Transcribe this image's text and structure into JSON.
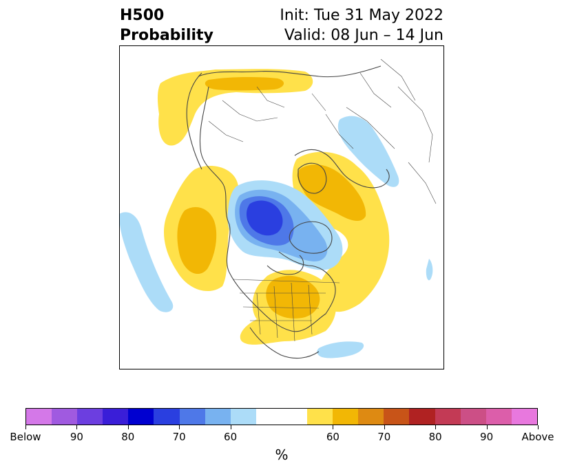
{
  "title": {
    "left_line1": "H500",
    "left_line2": "Probability",
    "right_line1": "Init: Tue 31 May 2022",
    "right_line2": "Valid: 08 Jun – 14 Jun"
  },
  "map": {
    "projection": "north-polar-stereographic",
    "land_border_color": "#444444",
    "background": "#ffffff"
  },
  "colorbar": {
    "unit_label": "%",
    "segments": [
      {
        "color": "#d478e8",
        "range": "Below"
      },
      {
        "color": "#a05ae0",
        "range": "90+"
      },
      {
        "color": "#6c3ee0",
        "range": "85-90"
      },
      {
        "color": "#3a1ed8",
        "range": "80-85"
      },
      {
        "color": "#0000d0",
        "range": "75-80"
      },
      {
        "color": "#2a3fe0",
        "range": "70-75"
      },
      {
        "color": "#4e78e8",
        "range": "65-70"
      },
      {
        "color": "#78b2f0",
        "range": "60-65"
      },
      {
        "color": "#acdcf8",
        "range": "55-60"
      },
      {
        "color": "#ffffff",
        "range": "neutral"
      },
      {
        "color": "#ffffff",
        "range": "neutral"
      },
      {
        "color": "#ffe14a",
        "range": "55-60"
      },
      {
        "color": "#f2b705",
        "range": "60-65"
      },
      {
        "color": "#de8a12",
        "range": "65-70"
      },
      {
        "color": "#c85418",
        "range": "70-75"
      },
      {
        "color": "#b02222",
        "range": "75-80"
      },
      {
        "color": "#c33a55",
        "range": "80-85"
      },
      {
        "color": "#cc4f86",
        "range": "85-90"
      },
      {
        "color": "#dc5eaa",
        "range": "90+"
      },
      {
        "color": "#e878de",
        "range": "Above"
      }
    ],
    "tick_labels": [
      "Below",
      "90",
      "80",
      "70",
      "60",
      "60",
      "70",
      "80",
      "90",
      "Above"
    ]
  }
}
